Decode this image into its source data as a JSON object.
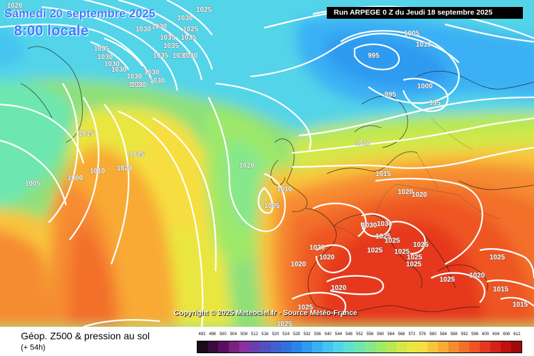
{
  "header": {
    "date": "Samedi 20 septembre 2025",
    "time": "8:00 locale",
    "run": "Run ARPEGE 0 Z du Jeudi 18 septembre 2025"
  },
  "copyright": "Copyright © 2025 Meteociel.fr - Source Météo-France",
  "footer": {
    "title": "Géop. Z500 & pression au sol",
    "subtitle": "(+ 54h)"
  },
  "scale": {
    "labels": [
      "492",
      "496",
      "500",
      "504",
      "508",
      "512",
      "516",
      "520",
      "524",
      "528",
      "532",
      "536",
      "540",
      "544",
      "548",
      "552",
      "556",
      "560",
      "564",
      "568",
      "572",
      "576",
      "580",
      "584",
      "588",
      "592",
      "596",
      "600",
      "604",
      "608",
      "612"
    ],
    "colors": [
      "#1a0a1a",
      "#3a0a3a",
      "#5a1060",
      "#7a2080",
      "#8a30a0",
      "#6a40b0",
      "#5050c0",
      "#4060d0",
      "#3070e0",
      "#2a84ea",
      "#2e9af0",
      "#3ab0f4",
      "#44c4f0",
      "#52d4e8",
      "#5ee0d0",
      "#6ee6b0",
      "#86e88a",
      "#9ee86a",
      "#b8e852",
      "#d4e848",
      "#eae640",
      "#f6de40",
      "#f8c43c",
      "#f8aa36",
      "#f68c30",
      "#f2702a",
      "#ee5424",
      "#e6381e",
      "#d62018",
      "#c01010",
      "#a00a0a"
    ]
  },
  "map": {
    "pressure_labels": [
      {
        "text": "1015"
      },
      {
        "text": "1030"
      },
      {
        "text": "1030"
      },
      {
        "text": "1025"
      },
      {
        "text": "1030"
      },
      {
        "text": "1020"
      },
      {
        "text": "1035"
      },
      {
        "text": "1035"
      },
      {
        "text": "1025"
      },
      {
        "text": "1035"
      },
      {
        "text": "1030"
      },
      {
        "text": "1035"
      },
      {
        "text": "1030"
      },
      {
        "text": "1030"
      },
      {
        "text": "1035"
      },
      {
        "text": "1030"
      },
      {
        "text": "1030"
      },
      {
        "text": "1030"
      },
      {
        "text": "1030"
      },
      {
        "text": "1030"
      },
      {
        "text": "1030"
      },
      {
        "text": "1030"
      },
      {
        "text": "1015"
      },
      {
        "text": "1025"
      },
      {
        "text": "1010"
      },
      {
        "text": "1020"
      },
      {
        "text": "1000"
      },
      {
        "text": "1005"
      },
      {
        "text": "1020"
      },
      {
        "text": "1010"
      },
      {
        "text": "1005"
      },
      {
        "text": "1010"
      },
      {
        "text": "1005"
      },
      {
        "text": "1000"
      },
      {
        "text": "995"
      },
      {
        "text": "995"
      },
      {
        "text": "1000"
      },
      {
        "text": "995"
      },
      {
        "text": "1010"
      },
      {
        "text": "1015"
      },
      {
        "text": "1020"
      },
      {
        "text": "1020"
      },
      {
        "text": "1030"
      },
      {
        "text": "1030"
      },
      {
        "text": "1025"
      },
      {
        "text": "1025"
      },
      {
        "text": "1025"
      },
      {
        "text": "1025"
      },
      {
        "text": "1025"
      },
      {
        "text": "1020"
      },
      {
        "text": "1020"
      },
      {
        "text": "1020"
      },
      {
        "text": "1025"
      },
      {
        "text": "1025"
      },
      {
        "text": "1025"
      },
      {
        "text": "1020"
      },
      {
        "text": "1020"
      },
      {
        "text": "1025"
      },
      {
        "text": "1025"
      },
      {
        "text": "1015"
      },
      {
        "text": "1015"
      },
      {
        "text": "1025"
      },
      {
        "text": "1020"
      }
    ]
  }
}
